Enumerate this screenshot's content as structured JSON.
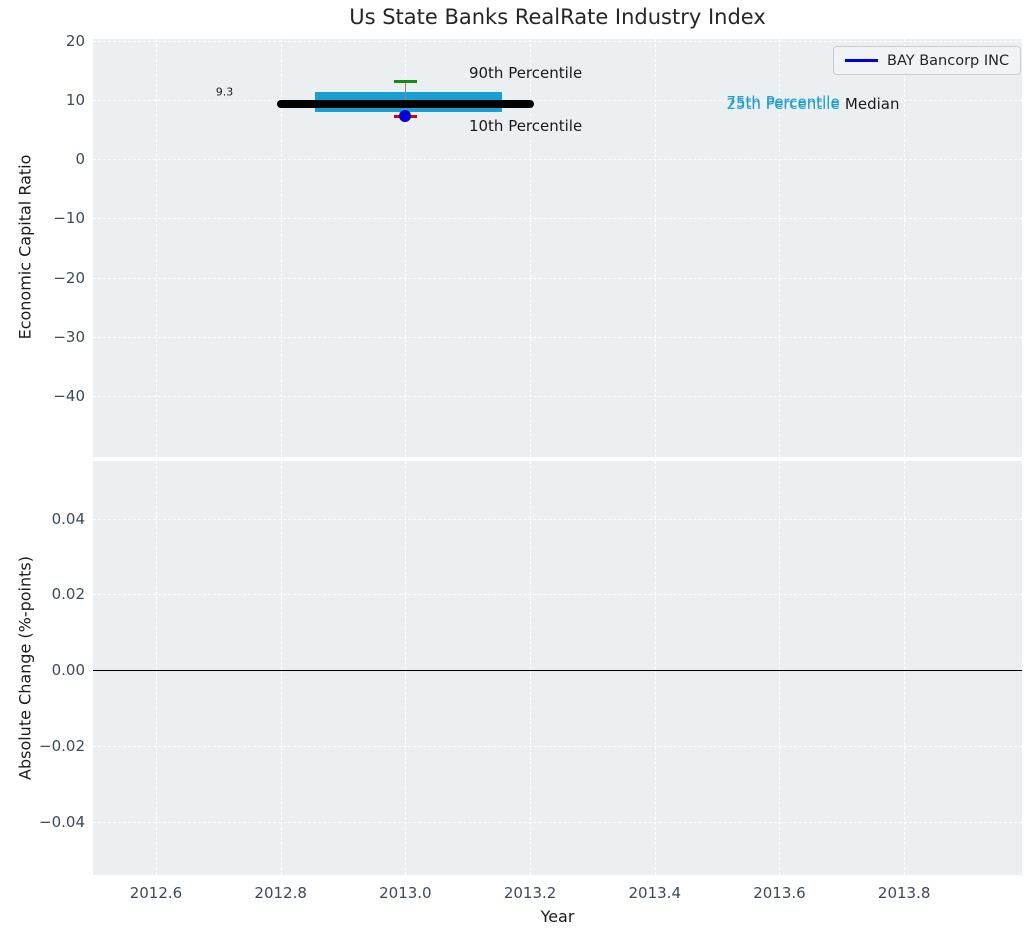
{
  "figure": {
    "title": "Us State Banks RealRate Industry Index",
    "background": "#ffffff",
    "plot_background": "#eceff1",
    "grid_color": "#ffffff",
    "tick_color": "#3b4a5c",
    "text_color": "#262626"
  },
  "legend": {
    "label": "BAY Bancorp INC",
    "line_color": "#0000dd",
    "position": "upper right"
  },
  "chart_data": [
    {
      "type": "scatter",
      "title": "Us State Banks RealRate Industry Index",
      "xlabel": "Year",
      "ylabel": "Economic Capital Ratio",
      "xlim": [
        2012.499,
        2013.989
      ],
      "ylim": [
        -50.3,
        20.3
      ],
      "xticks": [
        2012.6,
        2012.8,
        2013.0,
        2013.2,
        2013.4,
        2013.6,
        2013.8
      ],
      "yticks": [
        20,
        10,
        0,
        -10,
        -20,
        -30,
        -40
      ],
      "grid": true,
      "tick_decimals": {
        "x": 1,
        "y": 0
      },
      "series": [
        {
          "name": "BAY Bancorp INC",
          "color": "#0000dd",
          "marker": "circle",
          "points": [
            {
              "x": 2013.0,
              "y": 7.3
            }
          ]
        }
      ],
      "boxplot": {
        "x": 2013.0,
        "median": 9.3,
        "q1": 7.9,
        "q3": 11.3,
        "p10": 7.2,
        "p90": 13.1,
        "median_span_x": [
          2012.8,
          2013.2
        ],
        "box_span_x": [
          2012.855,
          2013.155
        ],
        "cap_halfwidth_x": 0.018,
        "colors": {
          "box": "#189fd6",
          "median_line": "#000000",
          "p90_cap": "#168a16",
          "p10_cap": "#dd0000",
          "whisker": "#8a8a8a"
        }
      },
      "annotations": [
        {
          "text": "9.3",
          "x": 2012.71,
          "y": 11.3,
          "color": "#1a1a1a",
          "size": 11,
          "ha": "center"
        },
        {
          "text": "90th Percentile",
          "x": 2013.102,
          "y": 14.5,
          "color": "#1a1a1a",
          "size": 15,
          "ha": "left"
        },
        {
          "text": "10th Percentile",
          "x": 2013.102,
          "y": 5.6,
          "color": "#1a1a1a",
          "size": 15,
          "ha": "left"
        },
        {
          "text": "75th Percentile",
          "x": 2013.515,
          "y": 9.7,
          "color": "#1f9fd4",
          "size": 15,
          "ha": "left"
        },
        {
          "text": "25th Percentile",
          "x": 2013.515,
          "y": 9.3,
          "color": "#1f9fd4",
          "size": 15,
          "ha": "left"
        },
        {
          "text": "Median",
          "x": 2013.705,
          "y": 9.4,
          "color": "#1a1a1a",
          "size": 15,
          "ha": "left"
        }
      ]
    },
    {
      "type": "line",
      "title": "",
      "xlabel": "Year",
      "ylabel": "Absolute Change (%-points)",
      "xlim": [
        2012.499,
        2013.989
      ],
      "ylim": [
        -0.054,
        0.0552
      ],
      "xticks": [
        2012.6,
        2012.8,
        2013.0,
        2013.2,
        2013.4,
        2013.6,
        2013.8
      ],
      "yticks": [
        0.04,
        0.02,
        0,
        -0.02,
        -0.04
      ],
      "grid": true,
      "tick_decimals": {
        "x": 1,
        "y": 2
      },
      "zero_line": {
        "y": 0,
        "color": "#000000"
      },
      "series": []
    }
  ]
}
